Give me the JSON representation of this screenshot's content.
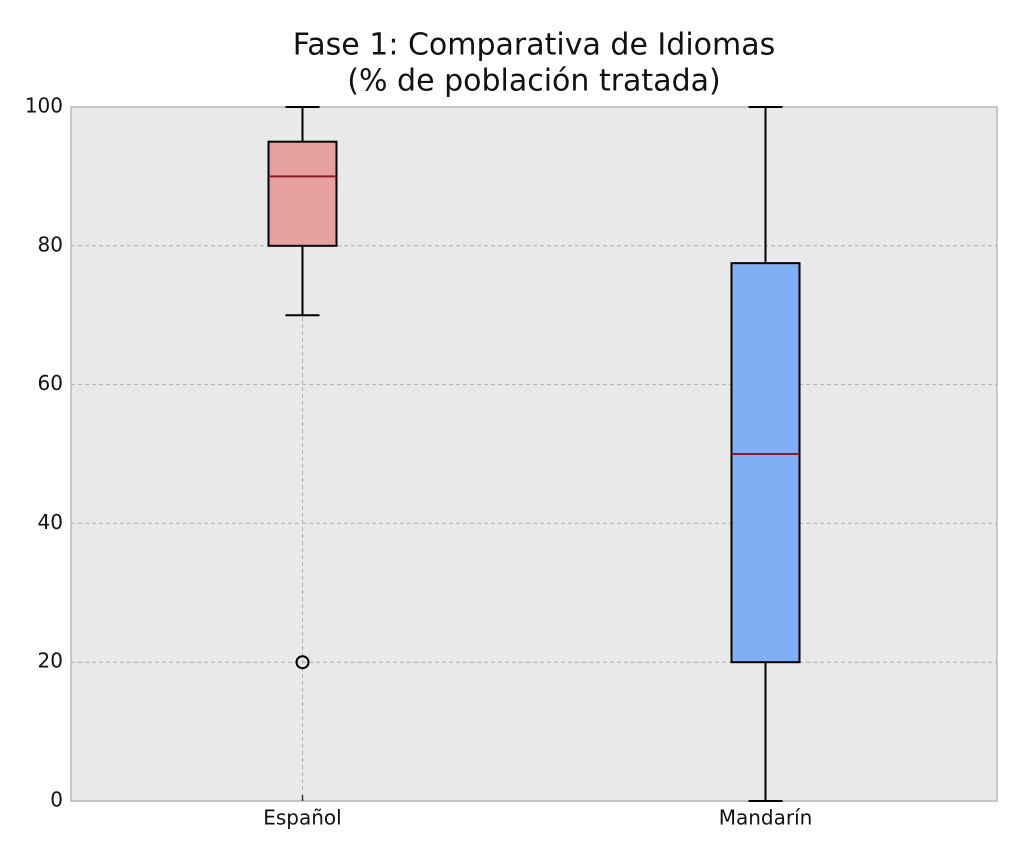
{
  "chart_data": {
    "type": "box",
    "title": "Fase 1: Comparativa de Idiomas",
    "subtitle": "(% de población tratada)",
    "categories": [
      "Español",
      "Mandarín"
    ],
    "boxes": [
      {
        "whislo": 70,
        "q1": 80,
        "med": 90,
        "q3": 95,
        "whishi": 100,
        "fliers": [
          20
        ],
        "color": "#e6a09e"
      },
      {
        "whislo": 0,
        "q1": 20,
        "med": 50,
        "q3": 77.5,
        "whishi": 100,
        "fliers": [],
        "color": "#80aff5"
      }
    ],
    "median_color": "#8b1a2a",
    "ylim": [
      0,
      100
    ],
    "yticks": [
      0,
      20,
      40,
      60,
      80,
      100
    ],
    "grid": true
  }
}
